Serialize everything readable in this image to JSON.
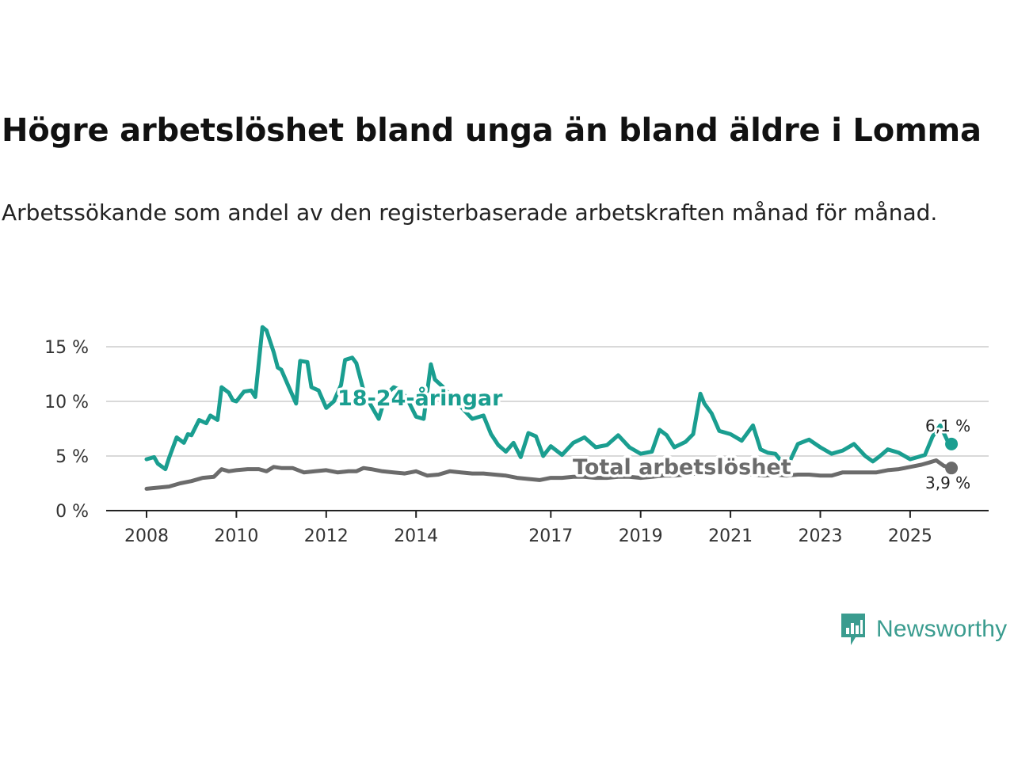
{
  "title": "Högre arbetslöshet bland unga än bland äldre i Lomma",
  "subtitle": "Arbetssökande som andel av den registerbaserade arbetskraften månad för månad.",
  "brand": {
    "name": "Newsworthy",
    "color": "#3a9c8f"
  },
  "chart_data": {
    "type": "line",
    "title": "Högre arbetslöshet bland unga än bland äldre i Lomma",
    "xlabel": "",
    "ylabel": "",
    "x_range": [
      2008.0,
      2025.92
    ],
    "ylim": [
      0,
      17.5
    ],
    "y_ticks": [
      0,
      5,
      10,
      15
    ],
    "y_tick_labels": [
      "0 %",
      "5 %",
      "10 %",
      "15 %"
    ],
    "x_ticks": [
      2008,
      2010,
      2012,
      2014,
      2017,
      2019,
      2021,
      2023,
      2025
    ],
    "x_tick_labels": [
      "2008",
      "2010",
      "2012",
      "2014",
      "2017",
      "2019",
      "2021",
      "2023",
      "2025"
    ],
    "grid": true,
    "series": [
      {
        "name": "18-24-åringar",
        "color": "#1a9e90",
        "end_label": "6,1 %",
        "x": [
          2008.0,
          2008.17,
          2008.25,
          2008.42,
          2008.5,
          2008.67,
          2008.83,
          2008.92,
          2009.0,
          2009.17,
          2009.33,
          2009.42,
          2009.58,
          2009.67,
          2009.83,
          2009.92,
          2010.0,
          2010.17,
          2010.33,
          2010.42,
          2010.58,
          2010.67,
          2010.83,
          2010.92,
          2011.0,
          2011.17,
          2011.33,
          2011.42,
          2011.58,
          2011.67,
          2011.83,
          2012.0,
          2012.17,
          2012.33,
          2012.42,
          2012.58,
          2012.67,
          2012.83,
          2013.0,
          2013.17,
          2013.33,
          2013.5,
          2013.67,
          2013.83,
          2014.0,
          2014.17,
          2014.33,
          2014.42,
          2014.58,
          2014.75,
          2015.0,
          2015.25,
          2015.5,
          2015.67,
          2015.83,
          2016.0,
          2016.17,
          2016.33,
          2016.5,
          2016.67,
          2016.83,
          2017.0,
          2017.25,
          2017.5,
          2017.75,
          2018.0,
          2018.25,
          2018.5,
          2018.75,
          2019.0,
          2019.25,
          2019.42,
          2019.58,
          2019.75,
          2020.0,
          2020.17,
          2020.33,
          2020.42,
          2020.58,
          2020.75,
          2021.0,
          2021.25,
          2021.5,
          2021.67,
          2021.83,
          2022.0,
          2022.25,
          2022.5,
          2022.75,
          2023.0,
          2023.25,
          2023.5,
          2023.75,
          2024.0,
          2024.17,
          2024.33,
          2024.5,
          2024.75,
          2025.0,
          2025.17,
          2025.33,
          2025.5,
          2025.67,
          2025.83,
          2025.92
        ],
        "values": [
          4.7,
          4.9,
          4.3,
          3.8,
          4.8,
          6.7,
          6.2,
          7.0,
          6.9,
          8.3,
          8.0,
          8.7,
          8.3,
          11.3,
          10.8,
          10.1,
          10.0,
          10.9,
          11.0,
          10.4,
          16.8,
          16.5,
          14.5,
          13.1,
          12.9,
          11.3,
          9.8,
          13.7,
          13.6,
          11.3,
          11.0,
          9.4,
          10.0,
          11.5,
          13.8,
          14.0,
          13.5,
          11.0,
          9.6,
          8.4,
          10.6,
          11.3,
          11.0,
          10.0,
          8.6,
          8.4,
          13.4,
          12.0,
          11.4,
          10.6,
          9.5,
          8.4,
          8.7,
          7.0,
          6.0,
          5.4,
          6.2,
          4.9,
          7.1,
          6.8,
          5.0,
          5.9,
          5.1,
          6.2,
          6.7,
          5.8,
          6.0,
          6.9,
          5.8,
          5.2,
          5.4,
          7.4,
          6.9,
          5.8,
          6.3,
          7.0,
          10.7,
          9.8,
          8.9,
          7.3,
          7.0,
          6.4,
          7.8,
          5.6,
          5.3,
          5.2,
          3.9,
          6.1,
          6.5,
          5.8,
          5.2,
          5.5,
          6.1,
          5.0,
          4.5,
          5.0,
          5.6,
          5.3,
          4.7,
          4.9,
          5.1,
          6.8,
          7.8,
          6.4,
          6.1
        ]
      },
      {
        "name": "Total arbetslöshet",
        "color": "#6b6b6b",
        "end_label": "3,9 %",
        "x": [
          2008.0,
          2008.25,
          2008.5,
          2008.75,
          2009.0,
          2009.25,
          2009.5,
          2009.67,
          2009.83,
          2010.0,
          2010.25,
          2010.5,
          2010.67,
          2010.83,
          2011.0,
          2011.25,
          2011.5,
          2011.75,
          2012.0,
          2012.25,
          2012.5,
          2012.67,
          2012.83,
          2013.0,
          2013.25,
          2013.5,
          2013.75,
          2014.0,
          2014.25,
          2014.5,
          2014.75,
          2015.0,
          2015.25,
          2015.5,
          2015.75,
          2016.0,
          2016.25,
          2016.5,
          2016.75,
          2017.0,
          2017.25,
          2017.5,
          2017.75,
          2018.0,
          2018.25,
          2018.5,
          2018.75,
          2019.0,
          2019.25,
          2019.5,
          2019.75,
          2020.0,
          2020.25,
          2020.5,
          2020.75,
          2021.0,
          2021.25,
          2021.5,
          2021.75,
          2022.0,
          2022.25,
          2022.5,
          2022.75,
          2023.0,
          2023.25,
          2023.5,
          2023.75,
          2024.0,
          2024.25,
          2024.5,
          2024.75,
          2025.0,
          2025.25,
          2025.42,
          2025.58,
          2025.75,
          2025.92
        ],
        "values": [
          2.0,
          2.1,
          2.2,
          2.5,
          2.7,
          3.0,
          3.1,
          3.8,
          3.6,
          3.7,
          3.8,
          3.8,
          3.6,
          4.0,
          3.9,
          3.9,
          3.5,
          3.6,
          3.7,
          3.5,
          3.6,
          3.6,
          3.9,
          3.8,
          3.6,
          3.5,
          3.4,
          3.6,
          3.2,
          3.3,
          3.6,
          3.5,
          3.4,
          3.4,
          3.3,
          3.2,
          3.0,
          2.9,
          2.8,
          3.0,
          3.0,
          3.1,
          3.1,
          3.0,
          3.0,
          3.1,
          3.1,
          3.0,
          3.1,
          3.2,
          3.2,
          3.3,
          3.4,
          3.5,
          3.6,
          3.7,
          3.5,
          3.3,
          3.2,
          3.3,
          3.2,
          3.3,
          3.3,
          3.2,
          3.2,
          3.5,
          3.5,
          3.5,
          3.5,
          3.7,
          3.8,
          4.0,
          4.2,
          4.4,
          4.6,
          4.1,
          3.9
        ]
      }
    ]
  }
}
